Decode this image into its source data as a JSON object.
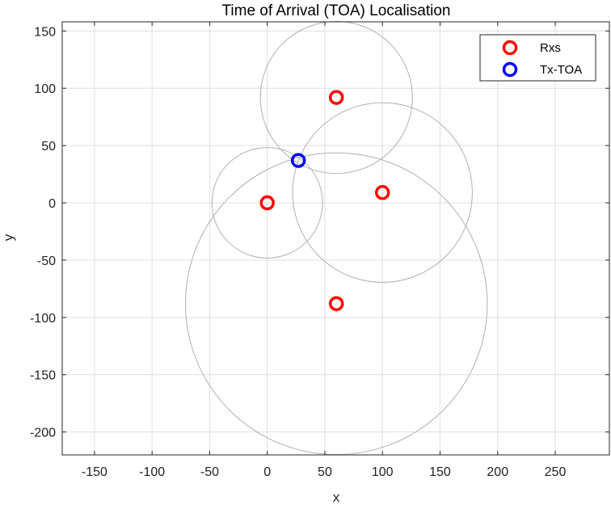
{
  "chart_data": {
    "type": "scatter",
    "title": "Time of Arrival (TOA) Localisation",
    "xlabel": "x",
    "ylabel": "y",
    "xlim": [
      -178,
      297
    ],
    "ylim": [
      -220,
      158
    ],
    "xticks": [
      -150,
      -100,
      -50,
      0,
      50,
      100,
      150,
      200,
      250
    ],
    "yticks": [
      -200,
      -150,
      -100,
      -50,
      0,
      50,
      100,
      150
    ],
    "grid": true,
    "legend": {
      "position": "top-right",
      "entries": [
        "Rxs",
        "Tx-TOA"
      ]
    },
    "series": [
      {
        "name": "Rxs",
        "color": "#ff0000",
        "marker": "circle",
        "points": [
          [
            0,
            0
          ],
          [
            60,
            92
          ],
          [
            100,
            9
          ],
          [
            60,
            -88
          ]
        ]
      },
      {
        "name": "Tx-TOA",
        "color": "#0000ff",
        "marker": "circle",
        "points": [
          [
            27,
            37
          ]
        ]
      }
    ],
    "range_circles": [
      {
        "cx": 0,
        "cy": 0,
        "r": 48
      },
      {
        "cx": 60,
        "cy": 92,
        "r": 66
      },
      {
        "cx": 100,
        "cy": 9,
        "r": 78
      },
      {
        "cx": 60,
        "cy": -88,
        "r": 131
      }
    ],
    "circle_color": "#b0b0b0"
  }
}
